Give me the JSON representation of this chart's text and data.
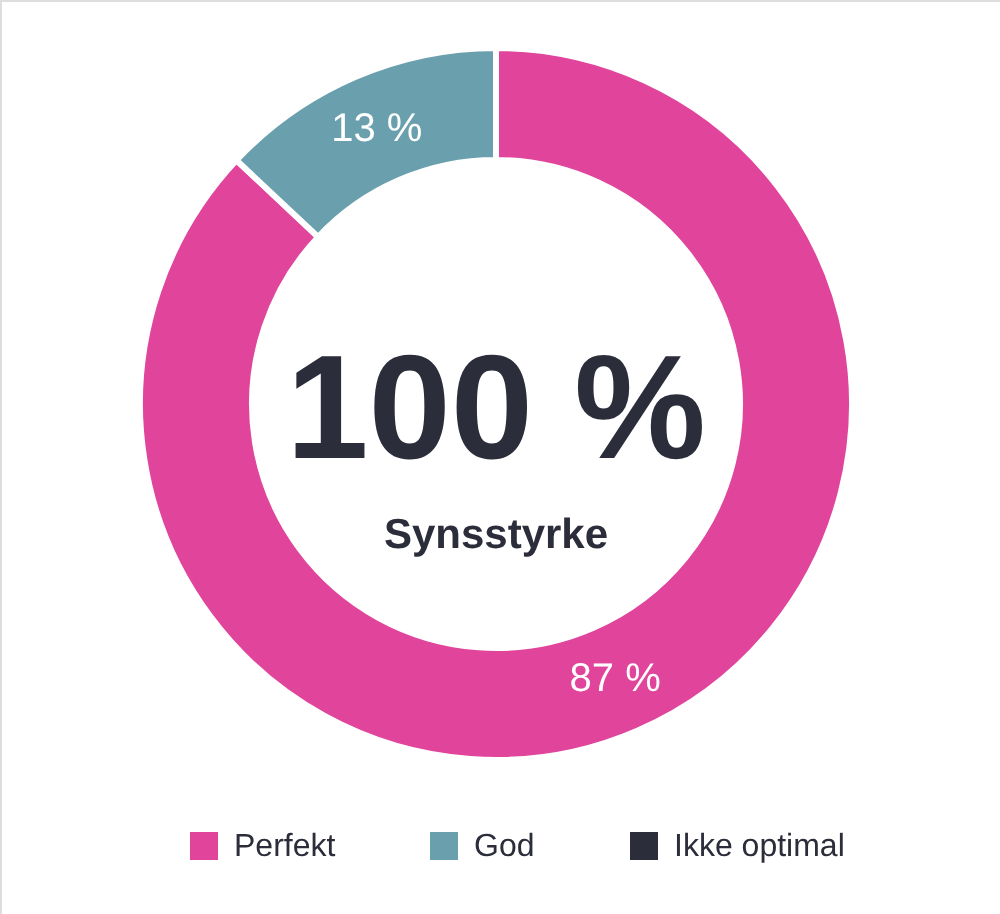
{
  "chart_data": {
    "type": "donut",
    "categories": [
      "Perfekt",
      "God",
      "Ikke optimal"
    ],
    "values": [
      87,
      13,
      0
    ],
    "colors": [
      "#e0449b",
      "#6aa0ae",
      "#2b2d3a"
    ],
    "value_labels": [
      "87 %",
      "13 %",
      null
    ],
    "annotations": [
      "100 %",
      "Synsstyrke"
    ],
    "legend": "bottom"
  }
}
